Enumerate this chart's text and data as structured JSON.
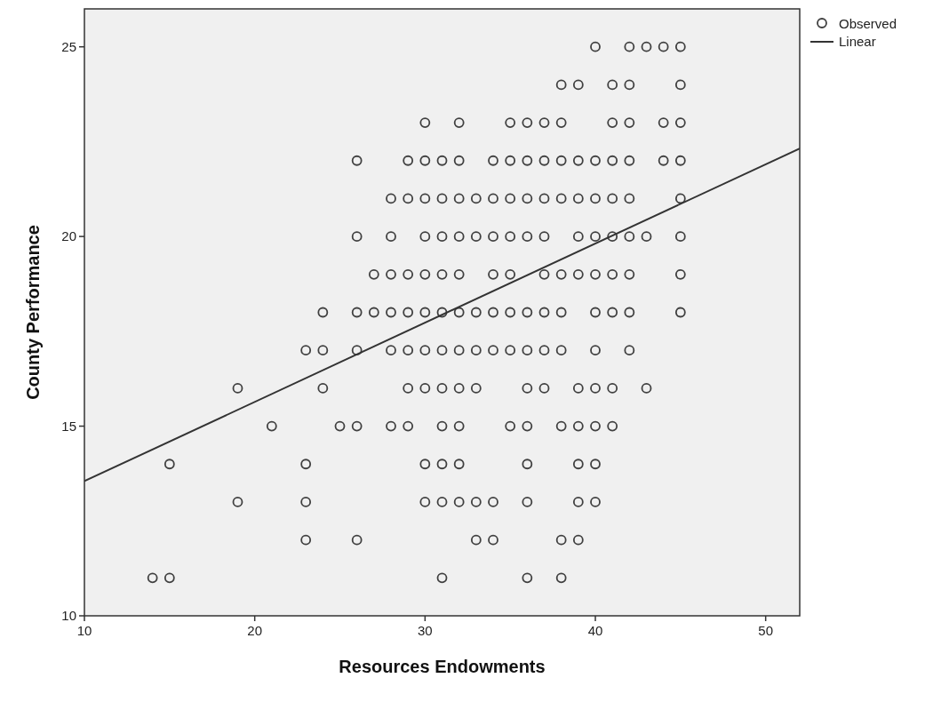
{
  "chart_data": {
    "type": "scatter",
    "xlabel": "Resources Endowments",
    "ylabel": "County Performance",
    "xlim": [
      10,
      52
    ],
    "ylim": [
      10,
      26
    ],
    "xticks": [
      10,
      20,
      30,
      40,
      50
    ],
    "yticks": [
      10,
      15,
      20,
      25
    ],
    "grid": false,
    "legend": "top right",
    "series": [
      {
        "name": "Observed",
        "type": "scatter",
        "marker": "circle",
        "color": "#404040",
        "x": [
          40,
          42,
          43,
          44,
          45,
          38,
          39,
          41,
          42,
          45,
          30,
          32,
          35,
          36,
          37,
          38,
          41,
          42,
          44,
          45,
          26,
          29,
          30,
          31,
          32,
          34,
          35,
          36,
          37,
          38,
          39,
          40,
          41,
          42,
          44,
          45,
          28,
          29,
          30,
          31,
          32,
          33,
          34,
          35,
          36,
          37,
          38,
          39,
          40,
          41,
          42,
          45,
          26,
          28,
          30,
          31,
          32,
          33,
          34,
          35,
          36,
          37,
          39,
          40,
          41,
          42,
          43,
          45,
          27,
          28,
          29,
          30,
          31,
          32,
          34,
          35,
          37,
          38,
          39,
          40,
          41,
          42,
          45,
          24,
          26,
          27,
          28,
          29,
          30,
          31,
          32,
          33,
          34,
          35,
          36,
          37,
          38,
          40,
          41,
          42,
          45,
          23,
          24,
          26,
          28,
          29,
          30,
          31,
          32,
          33,
          34,
          35,
          36,
          37,
          38,
          40,
          42,
          19,
          24,
          29,
          30,
          31,
          32,
          33,
          36,
          37,
          39,
          40,
          41,
          43,
          21,
          25,
          26,
          28,
          29,
          31,
          32,
          35,
          36,
          38,
          39,
          40,
          41,
          15,
          23,
          30,
          31,
          32,
          36,
          39,
          40,
          19,
          23,
          30,
          31,
          32,
          33,
          34,
          36,
          39,
          40,
          23,
          26,
          33,
          34,
          38,
          39,
          14,
          15,
          31,
          36,
          38
        ],
        "values": [
          25,
          25,
          25,
          25,
          25,
          24,
          24,
          24,
          24,
          24,
          23,
          23,
          23,
          23,
          23,
          23,
          23,
          23,
          23,
          23,
          22,
          22,
          22,
          22,
          22,
          22,
          22,
          22,
          22,
          22,
          22,
          22,
          22,
          22,
          22,
          22,
          21,
          21,
          21,
          21,
          21,
          21,
          21,
          21,
          21,
          21,
          21,
          21,
          21,
          21,
          21,
          21,
          20,
          20,
          20,
          20,
          20,
          20,
          20,
          20,
          20,
          20,
          20,
          20,
          20,
          20,
          20,
          20,
          19,
          19,
          19,
          19,
          19,
          19,
          19,
          19,
          19,
          19,
          19,
          19,
          19,
          19,
          19,
          18,
          18,
          18,
          18,
          18,
          18,
          18,
          18,
          18,
          18,
          18,
          18,
          18,
          18,
          18,
          18,
          18,
          18,
          17,
          17,
          17,
          17,
          17,
          17,
          17,
          17,
          17,
          17,
          17,
          17,
          17,
          17,
          17,
          17,
          16,
          16,
          16,
          16,
          16,
          16,
          16,
          16,
          16,
          16,
          16,
          16,
          16,
          15,
          15,
          15,
          15,
          15,
          15,
          15,
          15,
          15,
          15,
          15,
          15,
          15,
          14,
          14,
          14,
          14,
          14,
          14,
          14,
          14,
          13,
          13,
          13,
          13,
          13,
          13,
          13,
          13,
          13,
          13,
          12,
          12,
          12,
          12,
          12,
          12,
          11,
          11,
          11,
          11,
          11
        ]
      },
      {
        "name": "Linear",
        "type": "line",
        "line_style": "solid",
        "color": "#333333",
        "x": [
          10,
          52
        ],
        "values": [
          13.55,
          22.32
        ]
      }
    ]
  }
}
